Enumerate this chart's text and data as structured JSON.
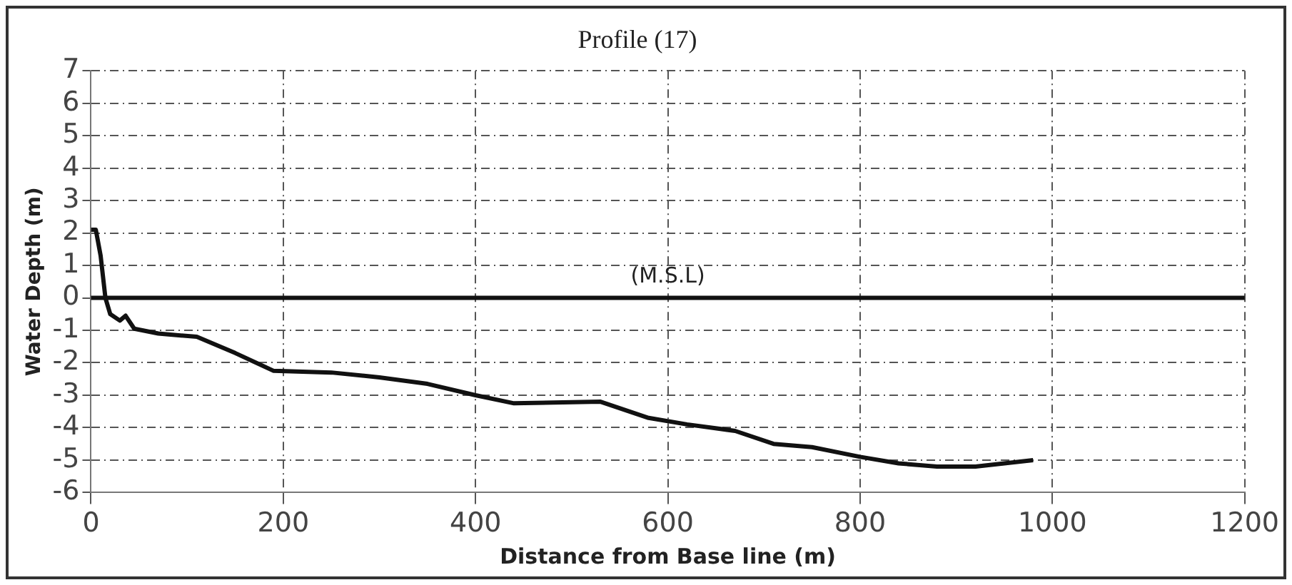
{
  "chart_data": {
    "type": "line",
    "title": "Profile (17)",
    "xlabel": "Distance from Base line (m)",
    "ylabel": "Water Depth (m)",
    "x": [
      0,
      5,
      10,
      15,
      20,
      30,
      36,
      45,
      70,
      110,
      150,
      190,
      250,
      300,
      350,
      400,
      440,
      530,
      580,
      620,
      670,
      710,
      750,
      800,
      840,
      880,
      920,
      950,
      980
    ],
    "series": [
      {
        "color": "#111111",
        "values": [
          2.1,
          2.1,
          1.3,
          0,
          -0.5,
          -0.7,
          -0.55,
          -0.95,
          -1.1,
          -1.2,
          -1.7,
          -2.25,
          -2.3,
          -2.45,
          -2.65,
          -3.0,
          -3.25,
          -3.2,
          -3.7,
          -3.9,
          -4.1,
          -4.5,
          -4.6,
          -4.9,
          -5.1,
          -5.2,
          -5.2,
          -5.1,
          -5.0
        ]
      }
    ],
    "xlim": [
      0,
      1200
    ],
    "xticks": [
      0,
      200,
      400,
      600,
      800,
      1000,
      1200
    ],
    "ylim": [
      -6,
      7
    ],
    "yticks": [
      -6,
      -5,
      -4,
      -3,
      -2,
      -1,
      0,
      1,
      2,
      3,
      4,
      5,
      6,
      7
    ],
    "ref_lines": [
      {
        "axis": "y",
        "value": 0,
        "label": "(M.S.L)",
        "color": "#111111"
      }
    ],
    "grid": true,
    "legend": false,
    "marker": "none",
    "line_style": "solid"
  }
}
